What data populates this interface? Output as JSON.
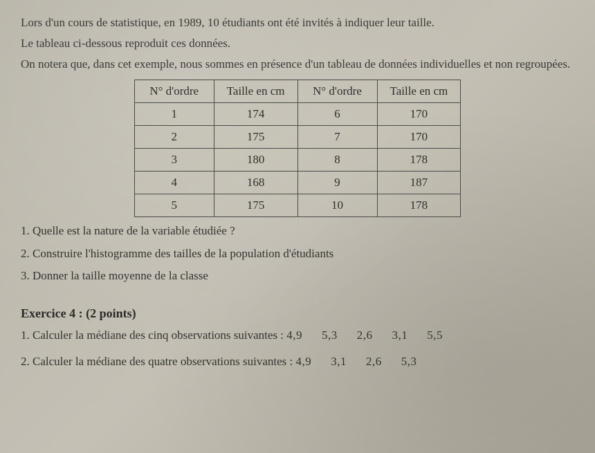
{
  "intro": {
    "line1": "Lors d'un cours de statistique, en 1989, 10 étudiants ont été invités à indiquer leur taille.",
    "line2": "Le tableau ci-dessous reproduit ces données.",
    "line3": "On notera que, dans cet exemple, nous sommes en présence d'un tableau de données individuelles et non regroupées."
  },
  "table": {
    "headers": {
      "col1": "N° d'ordre",
      "col2": "Taille en cm",
      "col3": "N° d'ordre",
      "col4": "Taille en cm"
    },
    "rows": [
      {
        "c1": "1",
        "c2": "174",
        "c3": "6",
        "c4": "170"
      },
      {
        "c1": "2",
        "c2": "175",
        "c3": "7",
        "c4": "170"
      },
      {
        "c1": "3",
        "c2": "180",
        "c3": "8",
        "c4": "178"
      },
      {
        "c1": "4",
        "c2": "168",
        "c3": "9",
        "c4": "187"
      },
      {
        "c1": "5",
        "c2": "175",
        "c3": "10",
        "c4": "178"
      }
    ]
  },
  "questions": {
    "q1": "1. Quelle est la nature de la variable étudiée ?",
    "q2": "2. Construire l'histogramme des tailles de la population d'étudiants",
    "q3": "3. Donner la taille moyenne de la classe"
  },
  "exercice4": {
    "header_title": "Exercice 4 :",
    "header_points": "(2 points)",
    "q1_text": "1. Calculer la médiane des cinq observations suivantes :",
    "q1_obs": [
      "4,9",
      "5,3",
      "2,6",
      "3,1",
      "5,5"
    ],
    "q2_text": "2. Calculer la médiane des quatre observations suivantes :",
    "q2_obs": [
      "4,9",
      "3,1",
      "2,6",
      "5,3"
    ]
  }
}
